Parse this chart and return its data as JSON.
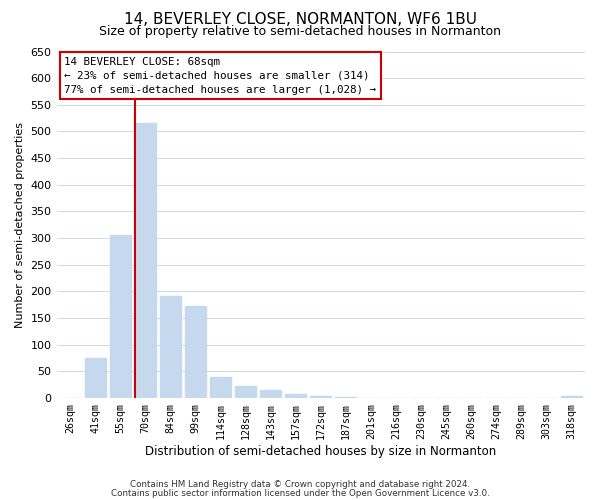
{
  "title": "14, BEVERLEY CLOSE, NORMANTON, WF6 1BU",
  "subtitle": "Size of property relative to semi-detached houses in Normanton",
  "xlabel": "Distribution of semi-detached houses by size in Normanton",
  "ylabel": "Number of semi-detached properties",
  "categories": [
    "26sqm",
    "41sqm",
    "55sqm",
    "70sqm",
    "84sqm",
    "99sqm",
    "114sqm",
    "128sqm",
    "143sqm",
    "157sqm",
    "172sqm",
    "187sqm",
    "201sqm",
    "216sqm",
    "230sqm",
    "245sqm",
    "260sqm",
    "274sqm",
    "289sqm",
    "303sqm",
    "318sqm"
  ],
  "values": [
    0,
    75,
    305,
    515,
    192,
    172,
    40,
    22,
    15,
    8,
    3,
    2,
    1,
    0,
    0,
    0,
    0,
    0,
    0,
    0,
    3
  ],
  "bar_color": "#c5d8ed",
  "vline_index": 3,
  "vline_color": "#cc0000",
  "ylim": [
    0,
    650
  ],
  "yticks": [
    0,
    50,
    100,
    150,
    200,
    250,
    300,
    350,
    400,
    450,
    500,
    550,
    600,
    650
  ],
  "annotation_title": "14 BEVERLEY CLOSE: 68sqm",
  "annotation_line1": "← 23% of semi-detached houses are smaller (314)",
  "annotation_line2": "77% of semi-detached houses are larger (1,028) →",
  "annotation_box_color": "#ffffff",
  "annotation_box_edge": "#cc0000",
  "footer1": "Contains HM Land Registry data © Crown copyright and database right 2024.",
  "footer2": "Contains public sector information licensed under the Open Government Licence v3.0.",
  "background_color": "#ffffff",
  "grid_color": "#d0d8e8",
  "title_fontsize": 11,
  "subtitle_fontsize": 9
}
